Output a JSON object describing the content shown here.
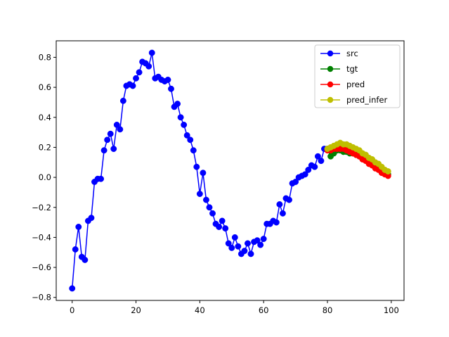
{
  "chart_data": {
    "type": "line",
    "title": "",
    "xlabel": "",
    "ylabel": "",
    "xlim": [
      -5,
      104
    ],
    "ylim": [
      -0.82,
      0.91
    ],
    "x_ticks": [
      0,
      20,
      40,
      60,
      80,
      100
    ],
    "y_ticks": [
      -0.8,
      -0.6,
      -0.4,
      -0.2,
      0.0,
      0.2,
      0.4,
      0.6,
      0.8
    ],
    "x_tick_labels": [
      "0",
      "20",
      "40",
      "60",
      "80",
      "100"
    ],
    "y_tick_labels": [
      "−0.8",
      "−0.6",
      "−0.4",
      "−0.2",
      "0.0",
      "0.2",
      "0.4",
      "0.6",
      "0.8"
    ],
    "grid": false,
    "legend_position": "top-right",
    "series": [
      {
        "name": "src",
        "color": "#0000ff",
        "marker": "circle",
        "x": [
          0,
          1,
          2,
          3,
          4,
          5,
          6,
          7,
          8,
          9,
          10,
          11,
          12,
          13,
          14,
          15,
          16,
          17,
          18,
          19,
          20,
          21,
          22,
          23,
          24,
          25,
          26,
          27,
          28,
          29,
          30,
          31,
          32,
          33,
          34,
          35,
          36,
          37,
          38,
          39,
          40,
          41,
          42,
          43,
          44,
          45,
          46,
          47,
          48,
          49,
          50,
          51,
          52,
          53,
          54,
          55,
          56,
          57,
          58,
          59,
          60,
          61,
          62,
          63,
          64,
          65,
          66,
          67,
          68,
          69,
          70,
          71,
          72,
          73,
          74,
          75,
          76,
          77,
          78,
          79,
          80
        ],
        "y": [
          -0.74,
          -0.48,
          -0.33,
          -0.53,
          -0.55,
          -0.29,
          -0.27,
          -0.03,
          -0.01,
          -0.01,
          0.18,
          0.25,
          0.29,
          0.19,
          0.35,
          0.32,
          0.51,
          0.61,
          0.62,
          0.61,
          0.66,
          0.7,
          0.77,
          0.76,
          0.74,
          0.83,
          0.66,
          0.67,
          0.65,
          0.64,
          0.65,
          0.59,
          0.47,
          0.49,
          0.4,
          0.35,
          0.28,
          0.25,
          0.18,
          0.07,
          -0.11,
          0.03,
          -0.15,
          -0.2,
          -0.24,
          -0.31,
          -0.33,
          -0.29,
          -0.34,
          -0.44,
          -0.47,
          -0.4,
          -0.46,
          -0.51,
          -0.49,
          -0.44,
          -0.51,
          -0.43,
          -0.42,
          -0.45,
          -0.41,
          -0.31,
          -0.31,
          -0.29,
          -0.3,
          -0.18,
          -0.24,
          -0.14,
          -0.15,
          -0.04,
          -0.03,
          0.0,
          0.01,
          0.02,
          0.05,
          0.08,
          0.07,
          0.14,
          0.11,
          0.19,
          0.19
        ]
      },
      {
        "name": "tgt",
        "color": "#008000",
        "marker": "circle",
        "x": [
          80,
          81,
          82,
          83,
          84,
          85,
          86,
          87,
          88,
          89,
          90,
          91,
          92,
          93,
          94,
          95,
          96,
          97,
          98,
          99
        ],
        "y": [
          0.19,
          0.14,
          0.16,
          0.18,
          0.18,
          0.17,
          0.17,
          0.16,
          0.16,
          0.15,
          0.14,
          0.13,
          0.12,
          0.11,
          0.09,
          0.08,
          0.06,
          0.05,
          0.03,
          0.02
        ]
      },
      {
        "name": "pred",
        "color": "#ff0000",
        "marker": "circle",
        "x": [
          80,
          81,
          82,
          83,
          84,
          85,
          86,
          87,
          88,
          89,
          90,
          91,
          92,
          93,
          94,
          95,
          96,
          97,
          98,
          99
        ],
        "y": [
          0.18,
          0.18,
          0.19,
          0.19,
          0.19,
          0.19,
          0.18,
          0.17,
          0.16,
          0.15,
          0.14,
          0.12,
          0.11,
          0.09,
          0.08,
          0.06,
          0.05,
          0.03,
          0.02,
          0.01
        ]
      },
      {
        "name": "pred_infer",
        "color": "#bfbf00",
        "marker": "circle",
        "x": [
          80,
          81,
          82,
          83,
          84,
          85,
          86,
          87,
          88,
          89,
          90,
          91,
          92,
          93,
          94,
          95,
          96,
          97,
          98,
          99
        ],
        "y": [
          0.19,
          0.2,
          0.21,
          0.22,
          0.23,
          0.22,
          0.22,
          0.21,
          0.2,
          0.19,
          0.18,
          0.16,
          0.15,
          0.13,
          0.12,
          0.1,
          0.09,
          0.07,
          0.05,
          0.04
        ]
      }
    ]
  }
}
